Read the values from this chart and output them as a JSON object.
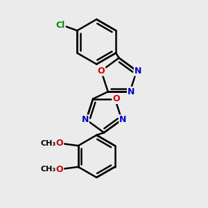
{
  "background_color": "#ebebeb",
  "bond_color": "#000000",
  "bond_width": 1.8,
  "atom_colors": {
    "N": "#0000cc",
    "O": "#cc0000",
    "Cl": "#008800"
  },
  "font_size": 9,
  "figsize": [
    3.0,
    3.0
  ],
  "dpi": 100,
  "xlim": [
    -2.5,
    2.5
  ],
  "ylim": [
    -4.0,
    4.2
  ]
}
